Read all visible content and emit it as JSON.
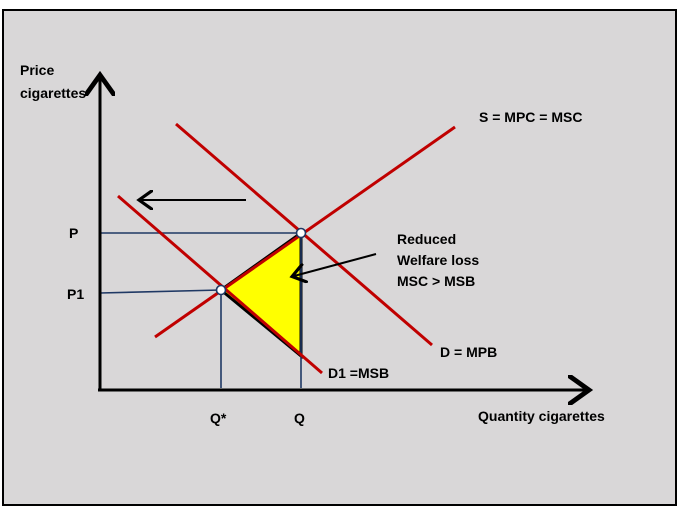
{
  "colors": {
    "background": "#d9d7d8",
    "border": "#000000",
    "curve": "#c00000",
    "guide": "#1f3864",
    "welfare_loss": "#ffff00",
    "axis": "#000000"
  },
  "axes": {
    "y_label_line1": "Price",
    "y_label_line2": "cigarettes",
    "x_label": "Quantity cigarettes"
  },
  "curves": {
    "supply": "S = MPC = MSC",
    "demand": "D = MPB",
    "shifted_demand": "D1 =MSB"
  },
  "ticks": {
    "price_high": "P",
    "price_low": "P1",
    "quantity_optimal": "Q*",
    "quantity_market": "Q"
  },
  "annotation": {
    "line1": "Reduced",
    "line2": "Welfare loss",
    "line3": "MSC > MSB"
  },
  "arrows": {
    "shift_direction": "left-arrow-icon",
    "annotation_pointer": "pointer-arrow-icon"
  }
}
